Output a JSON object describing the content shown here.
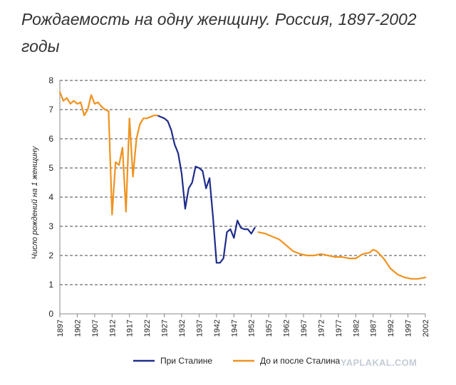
{
  "header": {
    "title": "Рождаемость на одну женщину. Россия, 1897-2002 годы"
  },
  "watermark": "YAPLAKAL.COM",
  "colors": {
    "stalin": "#1f2d8a",
    "other": "#f0921e",
    "grid": "#444444",
    "axis": "#888888"
  },
  "chart_data": {
    "type": "line",
    "title": "",
    "xlabel": "",
    "ylabel": "Число рождений на 1 женщину",
    "xlim": [
      1897,
      2002
    ],
    "ylim": [
      0,
      8
    ],
    "yticks": [
      "0",
      "1",
      "2",
      "3",
      "4",
      "5",
      "6",
      "7",
      "8"
    ],
    "xticks": [
      "1897",
      "1902",
      "1907",
      "1912",
      "1917",
      "1922",
      "1927",
      "1932",
      "1937",
      "1942",
      "1947",
      "1952",
      "1957",
      "1962",
      "1967",
      "1972",
      "1977",
      "1982",
      "1987",
      "1992",
      "1997",
      "2002"
    ],
    "grid": "horizontal-dashed",
    "legend_position": "bottom",
    "series": [
      {
        "name": "При Сталине",
        "color": "#1f2d8a",
        "x": [
          1925,
          1926,
          1927,
          1928,
          1929,
          1930,
          1931,
          1932,
          1933,
          1934,
          1935,
          1936,
          1937,
          1938,
          1939,
          1940,
          1941,
          1942,
          1943,
          1944,
          1945,
          1946,
          1947,
          1948,
          1949,
          1950,
          1951,
          1952,
          1953
        ],
        "y": [
          6.8,
          6.75,
          6.7,
          6.6,
          6.3,
          5.8,
          5.5,
          4.8,
          3.6,
          4.3,
          4.5,
          5.05,
          5.0,
          4.9,
          4.3,
          4.65,
          3.3,
          1.75,
          1.75,
          1.9,
          2.8,
          2.9,
          2.6,
          3.2,
          2.95,
          2.9,
          2.9,
          2.75,
          2.95
        ]
      },
      {
        "name": "До и после Сталина",
        "color": "#f0921e",
        "segments": [
          {
            "x": [
              1897,
              1898,
              1899,
              1900,
              1901,
              1902,
              1903,
              1904,
              1905,
              1906,
              1907,
              1908,
              1909,
              1910,
              1911,
              1912,
              1913,
              1914,
              1915,
              1916,
              1917,
              1918,
              1919,
              1920,
              1921,
              1922,
              1923,
              1924,
              1925
            ],
            "y": [
              7.6,
              7.3,
              7.4,
              7.2,
              7.3,
              7.2,
              7.25,
              6.8,
              7.0,
              7.5,
              7.2,
              7.25,
              7.1,
              7.0,
              6.95,
              3.4,
              5.2,
              5.1,
              5.7,
              3.5,
              6.7,
              4.7,
              6.0,
              6.5,
              6.7,
              6.7,
              6.75,
              6.8,
              6.8
            ]
          },
          {
            "x": [
              1954,
              1956,
              1958,
              1960,
              1962,
              1964,
              1966,
              1968,
              1970,
              1972,
              1974,
              1976,
              1978,
              1980,
              1982,
              1984,
              1986,
              1987,
              1988,
              1990,
              1992,
              1994,
              1996,
              1998,
              2000,
              2002
            ],
            "y": [
              2.8,
              2.75,
              2.65,
              2.55,
              2.35,
              2.15,
              2.05,
              2.0,
              2.0,
              2.05,
              2.0,
              1.95,
              1.95,
              1.9,
              1.9,
              2.05,
              2.1,
              2.2,
              2.15,
              1.9,
              1.55,
              1.35,
              1.25,
              1.2,
              1.2,
              1.25
            ]
          }
        ]
      }
    ]
  }
}
